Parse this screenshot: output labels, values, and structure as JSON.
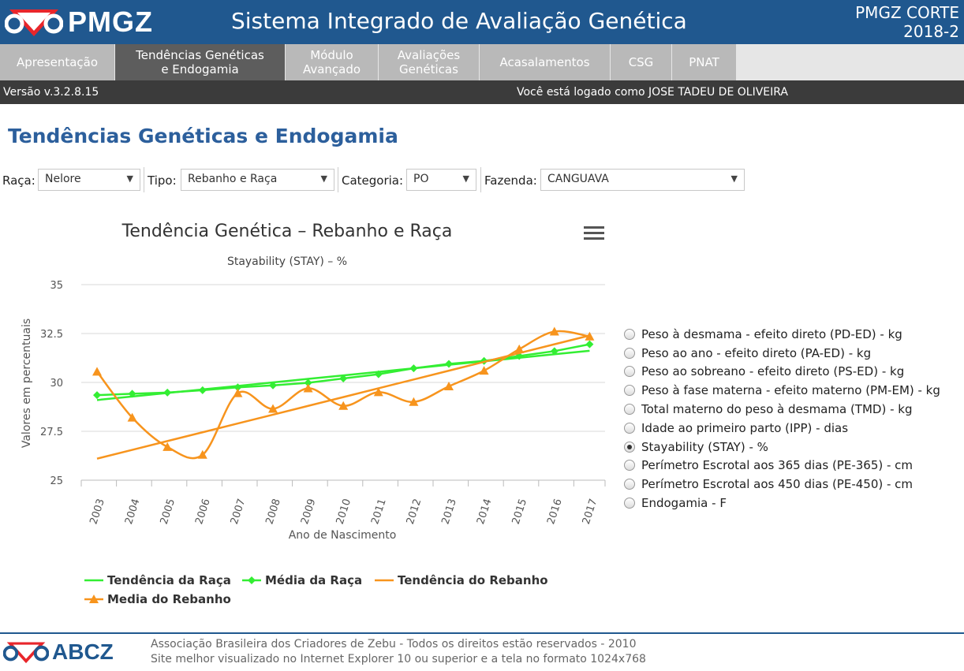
{
  "header": {
    "logo_text": "PMGZ",
    "title": "Sistema Integrado de Avaliação Genética",
    "product": "PMGZ CORTE",
    "version_year": "2018-2"
  },
  "nav": {
    "tabs": [
      {
        "line1": "Apresentação",
        "line2": ""
      },
      {
        "line1": "Tendências Genéticas",
        "line2": "e Endogamia"
      },
      {
        "line1": "Módulo",
        "line2": "Avançado"
      },
      {
        "line1": "Avaliações",
        "line2": "Genéticas"
      },
      {
        "line1": "Acasalamentos",
        "line2": ""
      },
      {
        "line1": "CSG",
        "line2": ""
      },
      {
        "line1": "PNAT",
        "line2": ""
      }
    ]
  },
  "infobar": {
    "version": "Versão v.3.2.8.15",
    "logged_user": "Você está logado como JOSE TADEU DE OLIVEIRA"
  },
  "page": {
    "title": "Tendências Genéticas e Endogamia"
  },
  "filters": {
    "raca_label": "Raça:",
    "raca_value": "Nelore",
    "tipo_label": "Tipo:",
    "tipo_value": "Rebanho e Raça",
    "categoria_label": "Categoria:",
    "categoria_value": "PO",
    "fazenda_label": "Fazenda:",
    "fazenda_value": "CANGUAVA"
  },
  "chart_data": {
    "type": "line",
    "title": "Tendência Genética – Rebanho e Raça",
    "subtitle": "Stayability (STAY) – %",
    "xlabel": "Ano de Nascimento",
    "ylabel": "Valores em percentuais",
    "ylim": [
      25,
      35
    ],
    "yticks": [
      25,
      27.5,
      30,
      32.5,
      35
    ],
    "ytick_labels": [
      "25",
      "27.5",
      "30",
      "32.5",
      "35"
    ],
    "x": [
      "2003",
      "2004",
      "2005",
      "2006",
      "2007",
      "2008",
      "2009",
      "2010",
      "2011",
      "2012",
      "2013",
      "2014",
      "2015",
      "2016",
      "2017"
    ],
    "grid": true,
    "legend_position": "bottom",
    "colors": {
      "raca": "#33ee33",
      "rebanho": "#f7941d"
    },
    "series": [
      {
        "name": "Tendência da Raça",
        "style": "line",
        "values": [
          29.1,
          29.28,
          29.46,
          29.64,
          29.82,
          30.0,
          30.18,
          30.36,
          30.54,
          30.72,
          30.9,
          31.08,
          31.26,
          31.44,
          31.62
        ]
      },
      {
        "name": "Média da Raça",
        "style": "line-diamond",
        "values": [
          29.35,
          29.42,
          29.48,
          29.6,
          29.75,
          29.85,
          29.98,
          30.2,
          30.42,
          30.72,
          30.95,
          31.1,
          31.35,
          31.6,
          31.95
        ]
      },
      {
        "name": "Tendência do Rebanho",
        "style": "line",
        "values": [
          26.1,
          26.55,
          27.0,
          27.45,
          27.9,
          28.35,
          28.8,
          29.25,
          29.7,
          30.15,
          30.6,
          31.05,
          31.5,
          31.95,
          32.4
        ]
      },
      {
        "name": "Media do Rebanho",
        "style": "spline-triangle",
        "values": [
          30.55,
          28.2,
          26.7,
          26.3,
          29.45,
          28.65,
          29.7,
          28.8,
          29.5,
          29.0,
          29.8,
          30.6,
          31.7,
          32.6,
          32.35
        ]
      }
    ]
  },
  "radio_options": {
    "items": [
      {
        "label": "Peso à desmama - efeito direto (PD-ED) - kg",
        "checked": false
      },
      {
        "label": "Peso ao ano - efeito direto (PA-ED) - kg",
        "checked": false
      },
      {
        "label": "Peso ao sobreano - efeito direto (PS-ED) - kg",
        "checked": false
      },
      {
        "label": "Peso à fase materna - efeito materno (PM-EM) - kg",
        "checked": false
      },
      {
        "label": "Total materno do peso à desmama (TMD) - kg",
        "checked": false
      },
      {
        "label": "Idade ao primeiro parto (IPP) - dias",
        "checked": false
      },
      {
        "label": "Stayability (STAY) - %",
        "checked": true
      },
      {
        "label": "Perímetro Escrotal aos 365 dias (PE-365) - cm",
        "checked": false
      },
      {
        "label": "Perímetro Escrotal aos 450 dias (PE-450) - cm",
        "checked": false
      },
      {
        "label": "Endogamia - F",
        "checked": false
      }
    ]
  },
  "footer": {
    "logo_text": "ABCZ",
    "line1": "Associação Brasileira dos Criadores de Zebu - Todos os direitos estão reservados - 2010",
    "line2": "Site melhor visualizado no Internet Explorer 10 ou superior e a tela no formato 1024x768"
  }
}
